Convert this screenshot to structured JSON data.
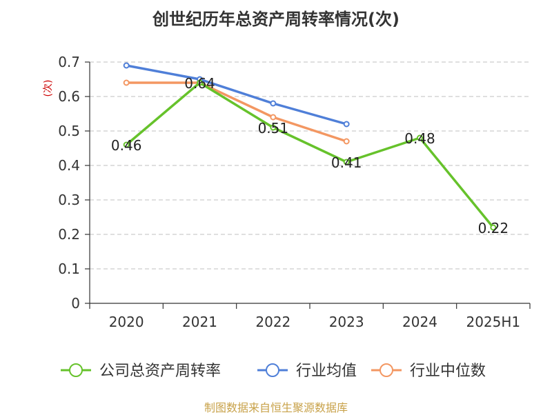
{
  "chart_data": {
    "type": "line",
    "title": "创世纪历年总资产周转率情况(次)",
    "ylabel": "(次)",
    "categories": [
      "2020",
      "2021",
      "2022",
      "2023",
      "2024",
      "2025H1"
    ],
    "y_ticks": [
      "0",
      "0.1",
      "0.2",
      "0.3",
      "0.4",
      "0.5",
      "0.6",
      "0.7"
    ],
    "ylim": [
      0,
      0.7
    ],
    "grid": "horizontal dashed",
    "legend_position": "bottom",
    "series": [
      {
        "name": "公司总资产周转率",
        "color": "#66c22b",
        "values": [
          0.46,
          0.64,
          0.51,
          0.41,
          0.48,
          0.22
        ],
        "labels": [
          "0.46",
          "0.64",
          "0.51",
          "0.41",
          "0.48",
          "0.22"
        ]
      },
      {
        "name": "行业均值",
        "color": "#4f7fd8",
        "values": [
          0.69,
          0.65,
          0.58,
          0.52,
          null,
          null
        ]
      },
      {
        "name": "行业中位数",
        "color": "#f39762",
        "values": [
          0.64,
          0.64,
          0.54,
          0.47,
          null,
          null
        ]
      }
    ]
  },
  "source": "制图数据来自恒生聚源数据库"
}
